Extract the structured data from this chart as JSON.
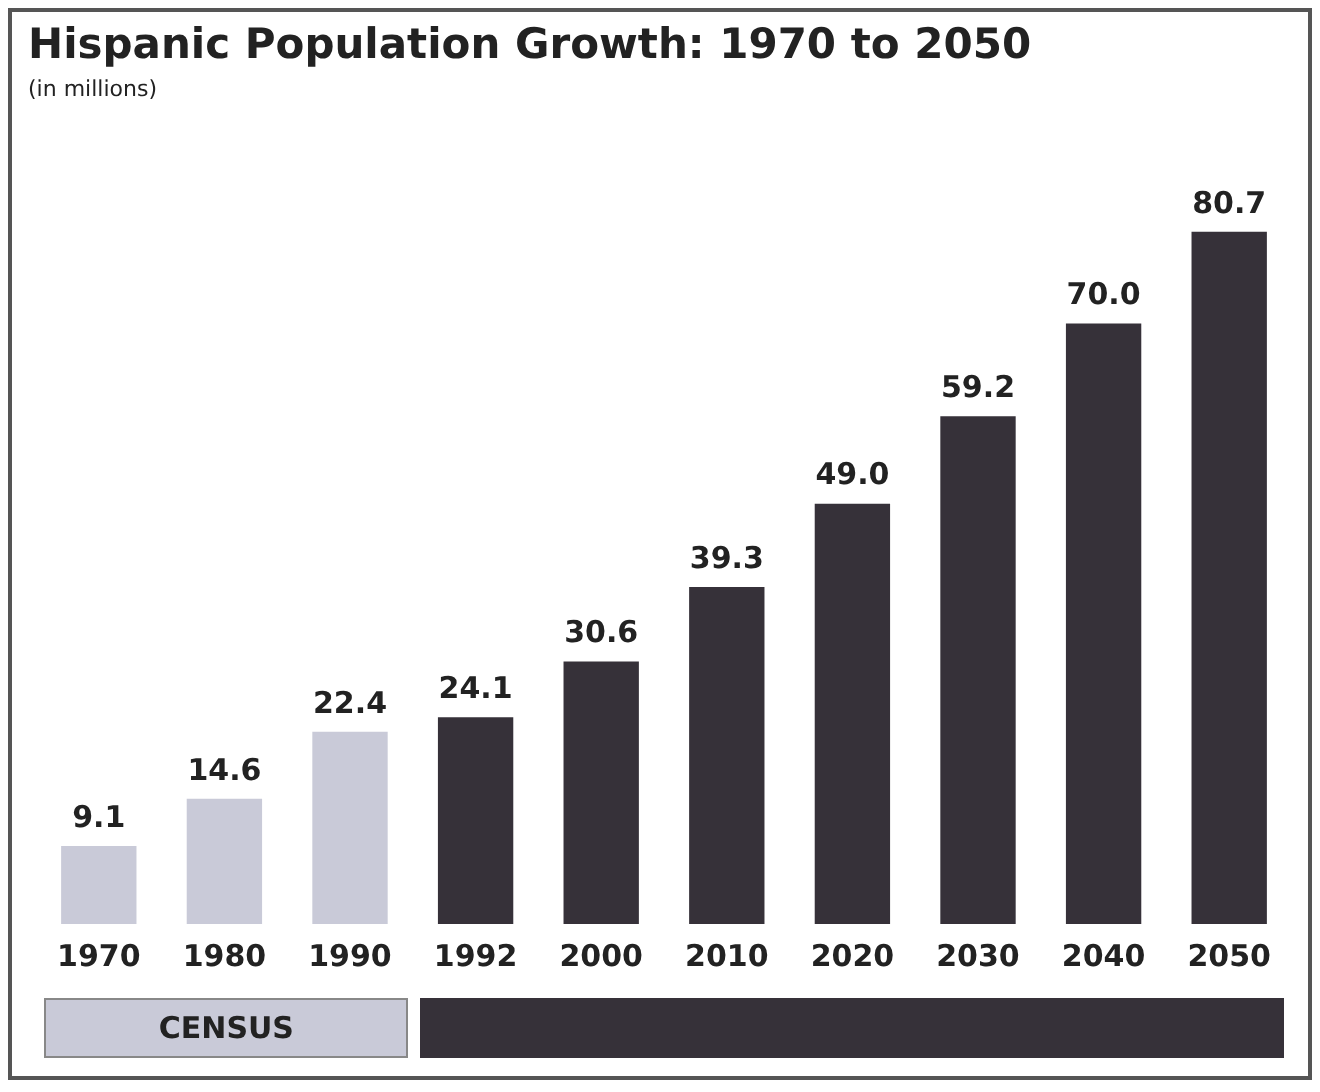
{
  "chart_data": {
    "type": "bar",
    "title": "Hispanic Population Growth: 1970 to 2050",
    "subtitle": "(in millions)",
    "categories": [
      "1970",
      "1980",
      "1990",
      "1992",
      "2000",
      "2010",
      "2020",
      "2030",
      "2040",
      "2050"
    ],
    "values": [
      9.1,
      14.6,
      22.4,
      24.1,
      30.6,
      39.3,
      49.0,
      59.2,
      70.0,
      80.7
    ],
    "value_labels": [
      "9.1",
      "14.6",
      "22.4",
      "24.1",
      "30.6",
      "39.3",
      "49.0",
      "59.2",
      "70.0",
      "80.7"
    ],
    "colors": [
      "#c9cad8",
      "#c9cad8",
      "#c9cad8",
      "#363139",
      "#363139",
      "#363139",
      "#363139",
      "#363139",
      "#363139",
      "#363139"
    ],
    "annotations": [
      "CENSUS"
    ],
    "tick_labels": "x",
    "grid": false,
    "legend": false
  }
}
